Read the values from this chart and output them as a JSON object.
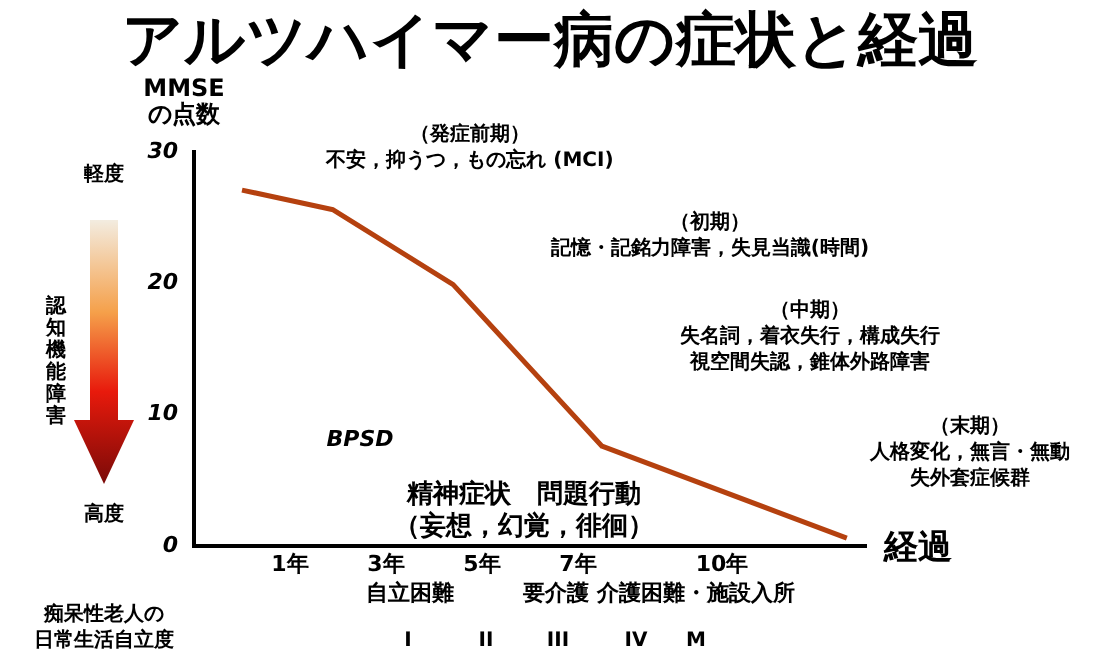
{
  "chart_data": {
    "type": "line",
    "title": "アルツハイマー病の症状と経過",
    "ylabel": "MMSE\nの点数",
    "xlabel": "経過",
    "x": [
      0,
      1.9,
      4.4,
      7.5,
      12.6
    ],
    "series": [
      {
        "color": "#b5410f",
        "values": [
          27.1,
          25.6,
          19.9,
          7.6,
          0.6
        ]
      }
    ],
    "xlim": [
      -1,
      13
    ],
    "xticks": [
      {
        "value": 1,
        "label": "1年"
      },
      {
        "value": 3,
        "label": "3年"
      },
      {
        "value": 5,
        "label": "5年"
      },
      {
        "value": 7,
        "label": "7年"
      },
      {
        "value": 10,
        "label": "10年"
      }
    ],
    "ylim": [
      0,
      30
    ],
    "yticks": [
      0,
      10,
      20,
      30
    ],
    "grid": false,
    "legend": false,
    "marker": "none",
    "line_style": "solid",
    "annotations": [
      "（発症前期）",
      "不安，抑うつ，もの忘れ (MCI)",
      "（初期）",
      "記憶・記銘力障害，失見当識(時間)",
      "（中期）",
      "失名詞，着衣失行，構成失行",
      "視空間失認，錐体外路障害",
      "（末期）",
      "人格変化，無言・無動",
      "失外套症候群",
      "BPSD",
      "精神症状　問題行動",
      "（妄想，幻覚，徘徊）",
      "自立困難",
      "要介護",
      "介護困難・施設入所",
      "痴呆性老人の",
      "日常生活自立度",
      "I",
      "II",
      "III",
      "IV",
      "M",
      "軽度",
      "認知機能障害",
      "高度"
    ]
  }
}
